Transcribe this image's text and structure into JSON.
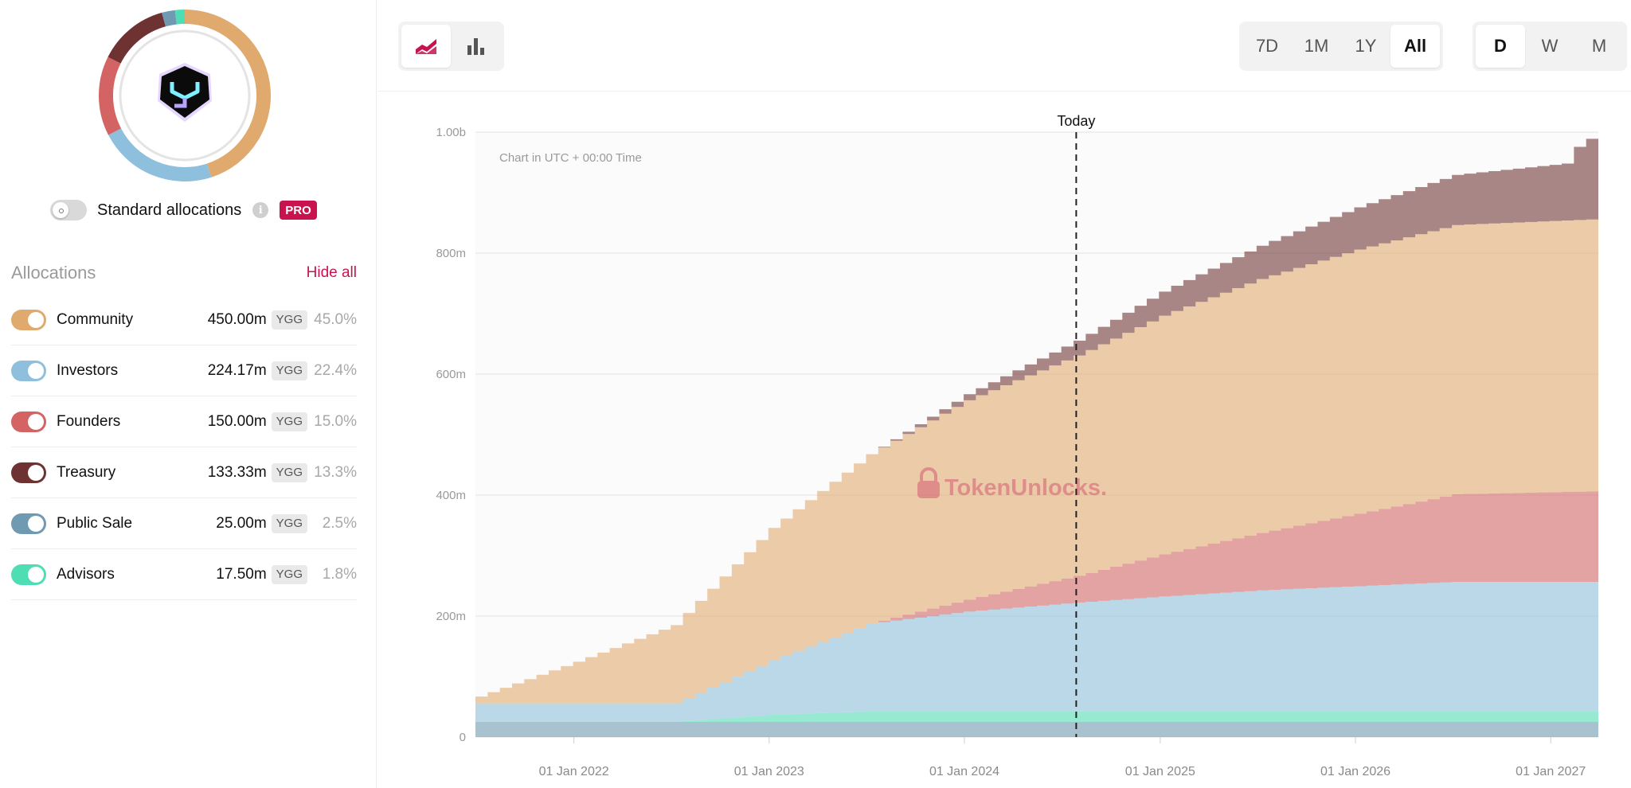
{
  "colors": {
    "community": "#E0A96D",
    "investors": "#8EBFDD",
    "founders": "#D46464",
    "treasury": "#6E3232",
    "public_sale": "#6F9AB2",
    "advisors": "#4FDDB4",
    "accent": "#C9134F"
  },
  "sidebar": {
    "logo_icon": "ygg-logo-icon",
    "standard_allocations_label": "Standard allocations",
    "pro_badge": "PRO",
    "info_icon": "info-icon",
    "allocations_title": "Allocations",
    "hide_all_label": "Hide all",
    "allocations": [
      {
        "name": "Community",
        "amount": "450.00m",
        "token": "YGG",
        "percent": "45.0%",
        "share": 45.0
      },
      {
        "name": "Investors",
        "amount": "224.17m",
        "token": "YGG",
        "percent": "22.4%",
        "share": 22.4
      },
      {
        "name": "Founders",
        "amount": "150.00m",
        "token": "YGG",
        "percent": "15.0%",
        "share": 15.0
      },
      {
        "name": "Treasury",
        "amount": "133.33m",
        "token": "YGG",
        "percent": "13.3%",
        "share": 13.3
      },
      {
        "name": "Public Sale",
        "amount": "25.00m",
        "token": "YGG",
        "percent": "2.5%",
        "share": 2.5
      },
      {
        "name": "Advisors",
        "amount": "17.50m",
        "token": "YGG",
        "percent": "1.8%",
        "share": 1.8
      }
    ]
  },
  "toolbar": {
    "chart_type_buttons": [
      {
        "icon": "area-chart-icon",
        "active": true
      },
      {
        "icon": "bar-chart-icon",
        "active": false
      }
    ],
    "range_buttons": [
      {
        "label": "7D",
        "active": false
      },
      {
        "label": "1M",
        "active": false
      },
      {
        "label": "1Y",
        "active": false
      },
      {
        "label": "All",
        "active": true
      }
    ],
    "period_buttons": [
      {
        "label": "D",
        "active": true
      },
      {
        "label": "W",
        "active": false
      },
      {
        "label": "M",
        "active": false
      }
    ]
  },
  "chart_data": {
    "type": "area",
    "stacked": true,
    "note": "Chart in UTC + 00:00 Time",
    "today_label": "Today",
    "today_date": "2024-07-28",
    "watermark": "TokenUnlocks.",
    "x_range": [
      "2021-07-01",
      "2027-03-31"
    ],
    "x_ticks": [
      "01 Jan 2022",
      "01 Jan 2023",
      "01 Jan 2024",
      "01 Jan 2025",
      "01 Jan 2026",
      "01 Jan 2027"
    ],
    "x_tick_dates": [
      "2022-01-01",
      "2023-01-01",
      "2024-01-01",
      "2025-01-01",
      "2026-01-01",
      "2027-01-01"
    ],
    "ylim": [
      0,
      1000
    ],
    "y_unit": "m",
    "y_ticks": [
      0,
      200,
      400,
      600,
      800,
      1000
    ],
    "y_tick_labels": [
      "0",
      "200m",
      "400m",
      "600m",
      "800m",
      "1.00b"
    ],
    "grid": true,
    "series_order": [
      "Public Sale",
      "Advisors",
      "Investors",
      "Founders",
      "Community",
      "Treasury"
    ],
    "series": [
      {
        "name": "Public Sale",
        "color": "#6F9AB2",
        "points": [
          [
            "2021-07-01",
            25
          ],
          [
            "2027-03-31",
            25
          ]
        ]
      },
      {
        "name": "Advisors",
        "color": "#4FDDB4",
        "points": [
          [
            "2021-07-01",
            0
          ],
          [
            "2022-07-01",
            0
          ],
          [
            "2023-01-01",
            12
          ],
          [
            "2023-07-01",
            17.5
          ],
          [
            "2027-03-31",
            17.5
          ]
        ]
      },
      {
        "name": "Investors",
        "color": "#8EBFDD",
        "points": [
          [
            "2021-07-01",
            30
          ],
          [
            "2022-07-01",
            30
          ],
          [
            "2023-01-01",
            90
          ],
          [
            "2023-07-01",
            145
          ],
          [
            "2024-01-01",
            165
          ],
          [
            "2024-07-28",
            180
          ],
          [
            "2025-01-01",
            190
          ],
          [
            "2025-07-01",
            200
          ],
          [
            "2026-01-01",
            207
          ],
          [
            "2026-07-01",
            214
          ],
          [
            "2027-03-31",
            214
          ]
        ]
      },
      {
        "name": "Founders",
        "color": "#D46464",
        "points": [
          [
            "2021-07-01",
            0
          ],
          [
            "2023-07-01",
            0
          ],
          [
            "2024-01-01",
            20
          ],
          [
            "2024-07-28",
            45
          ],
          [
            "2025-01-01",
            70
          ],
          [
            "2025-07-01",
            95
          ],
          [
            "2026-01-01",
            120
          ],
          [
            "2026-07-01",
            145
          ],
          [
            "2027-03-31",
            150
          ]
        ]
      },
      {
        "name": "Community",
        "color": "#E0A96D",
        "points": [
          [
            "2021-07-01",
            12
          ],
          [
            "2022-01-01",
            70
          ],
          [
            "2022-07-01",
            130
          ],
          [
            "2023-01-01",
            220
          ],
          [
            "2023-07-01",
            280
          ],
          [
            "2024-01-01",
            330
          ],
          [
            "2024-07-28",
            365
          ],
          [
            "2025-01-01",
            395
          ],
          [
            "2025-07-01",
            420
          ],
          [
            "2026-01-01",
            437
          ],
          [
            "2026-07-01",
            445
          ],
          [
            "2027-03-31",
            450
          ]
        ]
      },
      {
        "name": "Treasury",
        "color": "#6E3232",
        "points": [
          [
            "2021-07-01",
            0
          ],
          [
            "2023-07-01",
            0
          ],
          [
            "2024-01-01",
            10
          ],
          [
            "2024-07-28",
            25
          ],
          [
            "2025-01-01",
            40
          ],
          [
            "2025-07-01",
            55
          ],
          [
            "2026-01-01",
            70
          ],
          [
            "2026-07-01",
            83
          ],
          [
            "2027-02-10",
            95
          ],
          [
            "2027-02-15",
            133.3
          ],
          [
            "2027-03-31",
            133.3
          ]
        ]
      }
    ]
  }
}
